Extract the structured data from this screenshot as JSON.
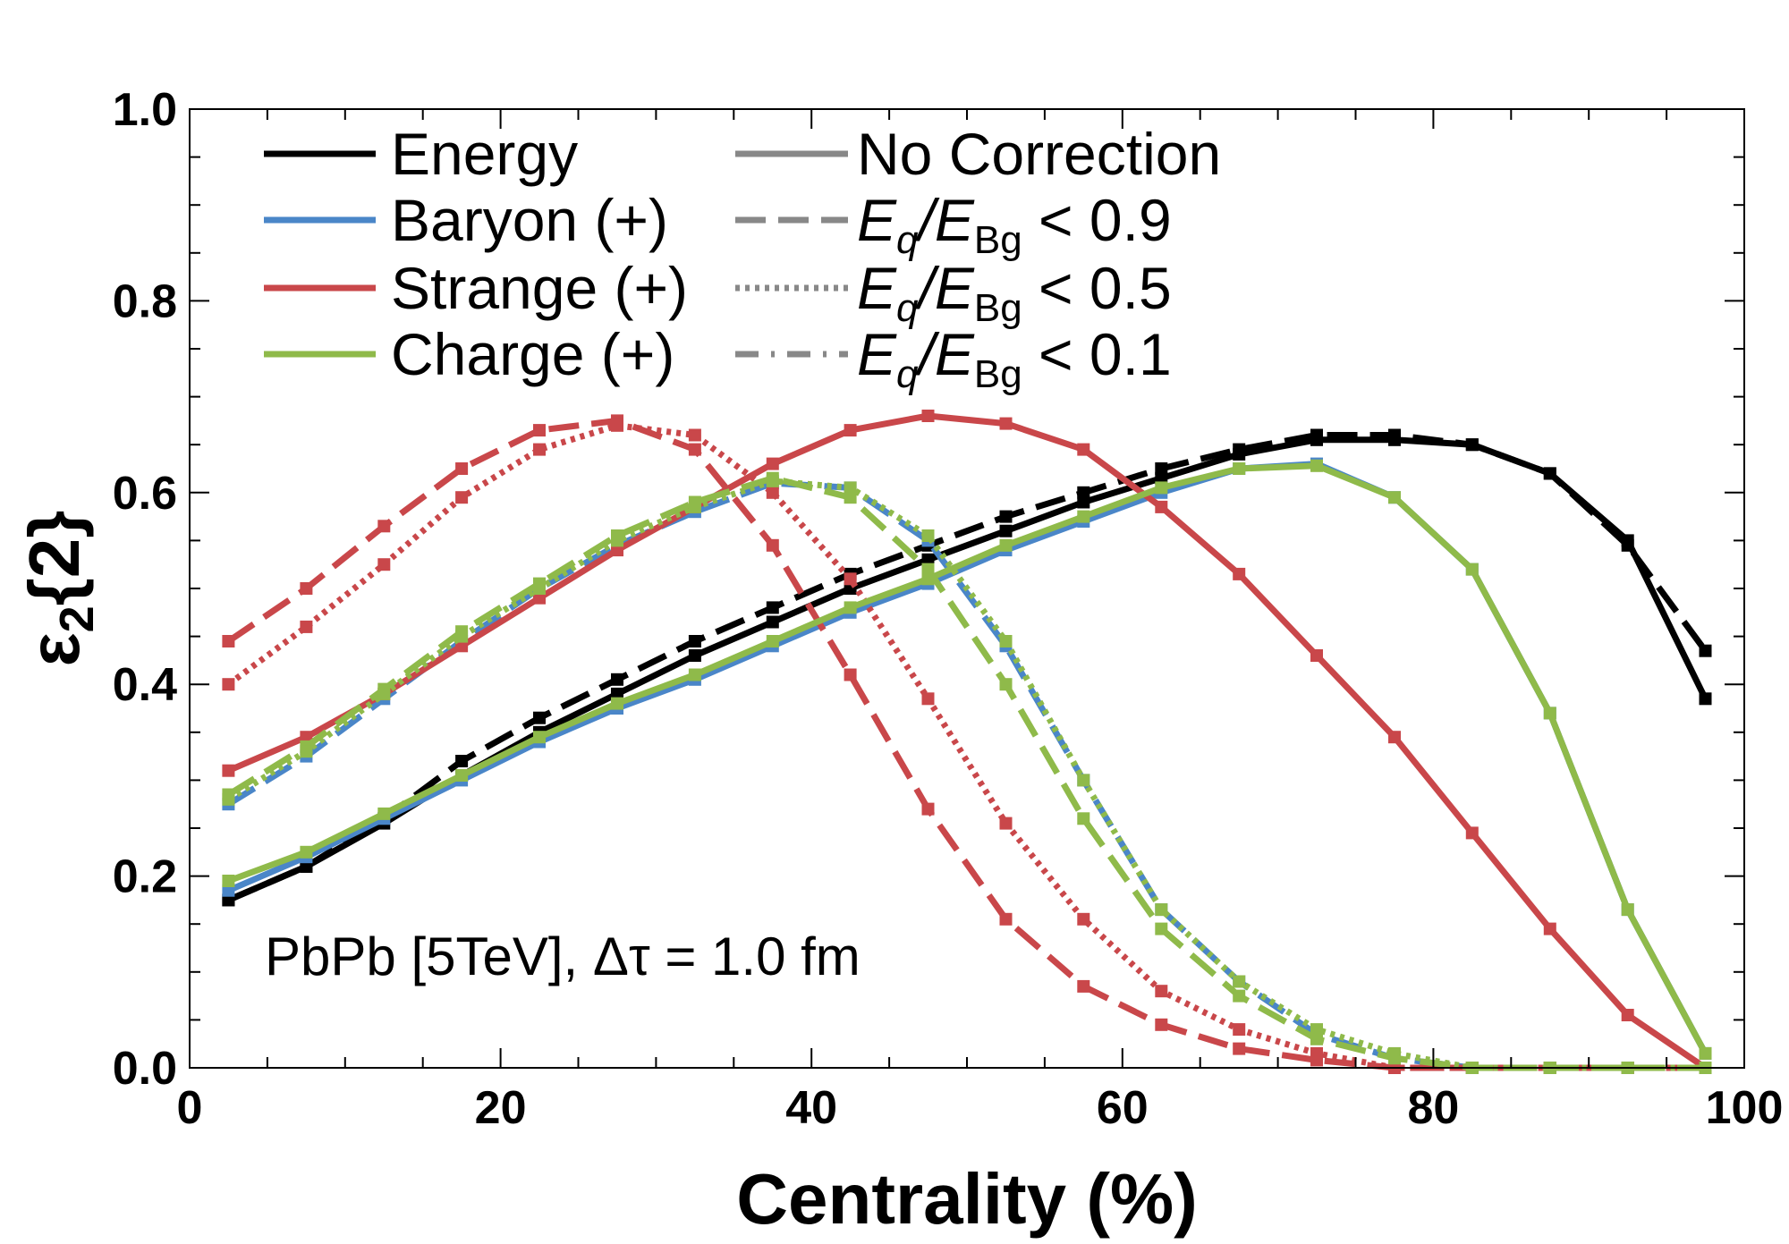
{
  "chart_data": {
    "type": "line",
    "title": "",
    "xlabel": "Centrality (%)",
    "ylabel_main": "ε",
    "ylabel_sub": "2",
    "ylabel_rest": "{2}",
    "xlim": [
      0,
      100
    ],
    "ylim": [
      0,
      1.0
    ],
    "xticks": [
      0,
      20,
      40,
      60,
      80,
      100
    ],
    "xtick_labels": [
      "0",
      "20",
      "40",
      "60",
      "80",
      "100"
    ],
    "yticks": [
      0,
      0.2,
      0.4,
      0.6,
      0.8,
      1.0
    ],
    "ytick_labels": [
      "0.0",
      "0.2",
      "0.4",
      "0.6",
      "0.8",
      "1.0"
    ],
    "annotation": "PbPb [5TeV], Δτ = 1.0 fm",
    "legend_species": [
      {
        "label": "Energy",
        "color": "#000000"
      },
      {
        "label": "Baryon (+)",
        "color": "#4a86c8"
      },
      {
        "label": "Strange (+)",
        "color": "#c9474a"
      },
      {
        "label": "Charge (+)",
        "color": "#8fba4a"
      }
    ],
    "legend_cuts": [
      {
        "label": "No Correction",
        "style": "solid",
        "color": "#888888"
      },
      {
        "label_pre": "E",
        "label_sub1": "q",
        "label_mid": "/E",
        "label_sub2": "Bg",
        "label_post": " < 0.9",
        "style": "dashed",
        "color": "#888888"
      },
      {
        "label_pre": "E",
        "label_sub1": "q",
        "label_mid": "/E",
        "label_sub2": "Bg",
        "label_post": " < 0.5",
        "style": "dotted",
        "color": "#888888"
      },
      {
        "label_pre": "E",
        "label_sub1": "q",
        "label_mid": "/E",
        "label_sub2": "Bg",
        "label_post": " < 0.1",
        "style": "dashdot",
        "color": "#888888"
      }
    ],
    "x": [
      2.5,
      7.5,
      12.5,
      17.5,
      22.5,
      27.5,
      32.5,
      37.5,
      42.5,
      47.5,
      52.5,
      57.5,
      62.5,
      67.5,
      72.5,
      77.5,
      82.5,
      87.5,
      92.5,
      97.5
    ],
    "series": [
      {
        "name": "Energy - No Correction",
        "color": "#000000",
        "style": "solid",
        "values": [
          0.175,
          0.21,
          0.255,
          0.305,
          0.35,
          0.39,
          0.43,
          0.465,
          0.5,
          0.53,
          0.56,
          0.59,
          0.615,
          0.64,
          0.655,
          0.655,
          0.65,
          0.62,
          0.55,
          0.385
        ]
      },
      {
        "name": "Energy - Eq/EBg < 0.9",
        "color": "#000000",
        "style": "dashed",
        "values": [
          0.175,
          0.21,
          0.26,
          0.32,
          0.365,
          0.405,
          0.445,
          0.48,
          0.515,
          0.545,
          0.575,
          0.6,
          0.625,
          0.645,
          0.66,
          0.66,
          0.65,
          0.62,
          0.545,
          0.435
        ]
      },
      {
        "name": "Baryon - No Correction",
        "color": "#4a86c8",
        "style": "solid",
        "values": [
          0.185,
          0.22,
          0.26,
          0.3,
          0.34,
          0.375,
          0.405,
          0.44,
          0.475,
          0.505,
          0.54,
          0.57,
          0.6,
          0.625,
          0.63,
          0.595,
          0.52,
          0.37,
          0.165,
          0.015
        ]
      },
      {
        "name": "Baryon - Eq/EBg < 0.9",
        "color": "#4a86c8",
        "style": "dashed",
        "values": [
          0.275,
          0.325,
          0.385,
          0.445,
          0.5,
          0.545,
          0.58,
          0.61,
          0.605,
          0.55,
          0.44,
          0.3,
          0.165,
          0.09,
          0.035,
          0.01,
          0.0,
          0.0,
          0.0,
          0.0
        ]
      },
      {
        "name": "Strange - No Correction",
        "color": "#c9474a",
        "style": "solid",
        "values": [
          0.31,
          0.345,
          0.39,
          0.44,
          0.49,
          0.54,
          0.585,
          0.63,
          0.665,
          0.68,
          0.672,
          0.645,
          0.585,
          0.515,
          0.43,
          0.345,
          0.245,
          0.145,
          0.055,
          0.0
        ]
      },
      {
        "name": "Strange - Eq/EBg < 0.9",
        "color": "#c9474a",
        "style": "dashed",
        "values": [
          0.445,
          0.5,
          0.565,
          0.625,
          0.665,
          0.675,
          0.645,
          0.545,
          0.41,
          0.27,
          0.155,
          0.085,
          0.045,
          0.02,
          0.008,
          0.0,
          0.0,
          0.0,
          0.0,
          0.0
        ]
      },
      {
        "name": "Strange - Eq/EBg < 0.5",
        "color": "#c9474a",
        "style": "dotted",
        "values": [
          0.4,
          0.46,
          0.525,
          0.595,
          0.645,
          0.67,
          0.66,
          0.6,
          0.51,
          0.385,
          0.255,
          0.155,
          0.08,
          0.04,
          0.015,
          0.0,
          0.0,
          0.0,
          0.0,
          0.0
        ]
      },
      {
        "name": "Charge - No Correction",
        "color": "#8fba4a",
        "style": "solid",
        "values": [
          0.195,
          0.225,
          0.265,
          0.305,
          0.345,
          0.38,
          0.41,
          0.445,
          0.48,
          0.51,
          0.545,
          0.575,
          0.605,
          0.625,
          0.628,
          0.595,
          0.52,
          0.37,
          0.165,
          0.015
        ]
      },
      {
        "name": "Charge - Eq/EBg < 0.9",
        "color": "#8fba4a",
        "style": "dashed",
        "values": [
          0.285,
          0.335,
          0.395,
          0.455,
          0.505,
          0.555,
          0.59,
          0.615,
          0.595,
          0.52,
          0.4,
          0.26,
          0.145,
          0.075,
          0.03,
          0.01,
          0.0,
          0.0,
          0.0,
          0.0
        ]
      },
      {
        "name": "Charge - Eq/EBg < 0.5",
        "color": "#8fba4a",
        "style": "dotted",
        "values": [
          0.28,
          0.33,
          0.39,
          0.45,
          0.5,
          0.55,
          0.585,
          0.612,
          0.605,
          0.555,
          0.445,
          0.3,
          0.165,
          0.09,
          0.04,
          0.015,
          0.0,
          0.0,
          0.0,
          0.0
        ]
      }
    ]
  }
}
